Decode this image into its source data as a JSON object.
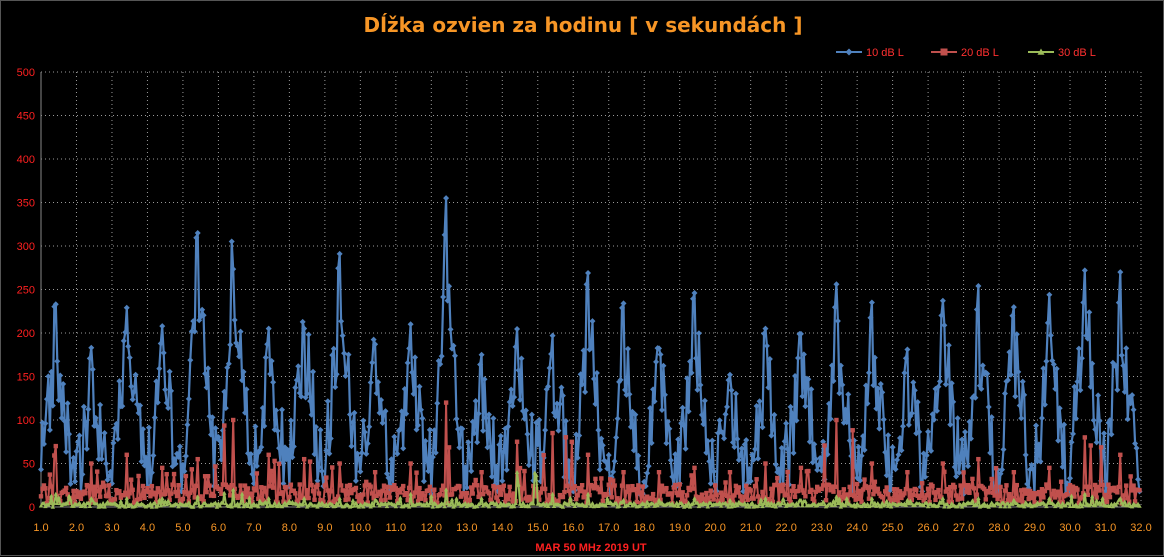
{
  "chart_data": {
    "type": "line",
    "title": "Dĺžka ozvien za hodinu [ v sekundách ]",
    "xlabel": "MAR 50 MHz  2019  UT",
    "ylabel": "",
    "xlim": [
      1,
      32
    ],
    "ylim": [
      0,
      500
    ],
    "yticks": [
      "0",
      "50",
      "100",
      "150",
      "200",
      "250",
      "300",
      "350",
      "400",
      "450",
      "500"
    ],
    "xticks": [
      "1.0",
      "2.0",
      "3.0",
      "4.0",
      "5.0",
      "6.0",
      "7.0",
      "8.0",
      "9.0",
      "10.0",
      "11.0",
      "12.0",
      "13.0",
      "14.0",
      "15.0",
      "16.0",
      "17.0",
      "18.0",
      "19.0",
      "20.0",
      "21.0",
      "22.0",
      "23.0",
      "24.0",
      "25.0",
      "26.0",
      "27.0",
      "28.0",
      "29.0",
      "30.0",
      "31.0",
      "32.0"
    ],
    "grid": true,
    "legend": "top-right",
    "colors": {
      "background": "#000000",
      "grid": "#9a9a9a",
      "title": "#f79626",
      "ytick": "#ff2020",
      "xtick": "#f79626",
      "xlabel": "#ff2020",
      "legend_text": "#ff3030"
    },
    "series": [
      {
        "name": "10 dB L",
        "color": "#4f81bd",
        "marker": "diamond",
        "day_peaks": [
          233,
          183,
          229,
          220,
          315,
          309,
          205,
          232,
          291,
          208,
          210,
          355,
          175,
          213,
          197,
          269,
          234,
          183,
          246,
          152,
          205,
          199,
          256,
          235,
          190,
          237,
          254,
          246,
          244,
          272,
          270
        ],
        "day_lows": [
          30,
          20,
          45,
          30,
          40,
          50,
          45,
          40,
          50,
          30,
          40,
          25,
          30,
          50,
          40,
          30,
          25,
          40,
          45,
          30,
          25,
          40,
          30,
          25,
          30,
          35,
          25,
          30,
          25,
          45,
          30
        ]
      },
      {
        "name": "20 dB L",
        "color": "#c0504d",
        "marker": "square",
        "day_peaks": [
          70,
          50,
          60,
          45,
          55,
          100,
          60,
          55,
          50,
          40,
          50,
          120,
          40,
          75,
          85,
          60,
          40,
          40,
          45,
          40,
          50,
          45,
          100,
          50,
          40,
          50,
          55,
          40,
          45,
          80,
          60
        ]
      },
      {
        "name": "30 dB L",
        "color": "#9bbb59",
        "marker": "triangle",
        "day_peaks": [
          15,
          10,
          10,
          10,
          12,
          20,
          10,
          10,
          10,
          8,
          15,
          20,
          10,
          40,
          15,
          15,
          8,
          8,
          10,
          8,
          10,
          8,
          12,
          10,
          8,
          10,
          10,
          8,
          10,
          15,
          10
        ]
      }
    ]
  }
}
